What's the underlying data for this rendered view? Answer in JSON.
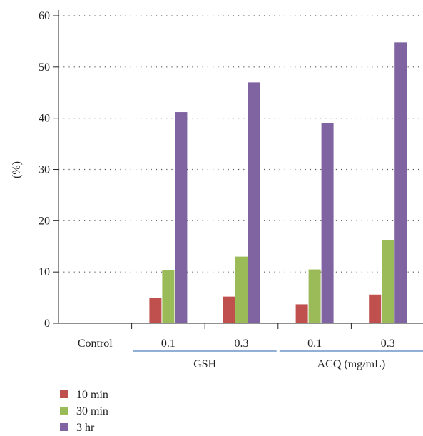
{
  "chart_data": {
    "type": "bar",
    "ylabel": "(%)",
    "ylim": [
      0,
      60
    ],
    "yticks": [
      "0",
      "10",
      "20",
      "30",
      "40",
      "50",
      "60"
    ],
    "grid": "dotted horizontal",
    "legend_position": "bottom-left",
    "categories": [
      "Control",
      "0.1",
      "0.3",
      "0.1",
      "0.3"
    ],
    "groups": [
      {
        "label": "GSH",
        "members": [
          1,
          2
        ]
      },
      {
        "label": "ACQ (mg/mL)",
        "members": [
          3,
          4
        ]
      }
    ],
    "series": [
      {
        "name": "10 min",
        "color": "#c0504d",
        "values": [
          0,
          4.9,
          5.2,
          3.7,
          5.6
        ]
      },
      {
        "name": "30 min",
        "color": "#9bbb59",
        "values": [
          0,
          10.4,
          13.0,
          10.5,
          16.2
        ]
      },
      {
        "name": "3 hr",
        "color": "#8064a2",
        "values": [
          0,
          41.2,
          47.0,
          39.1,
          54.8
        ]
      }
    ],
    "group_underline_color": "#4f81bd"
  }
}
